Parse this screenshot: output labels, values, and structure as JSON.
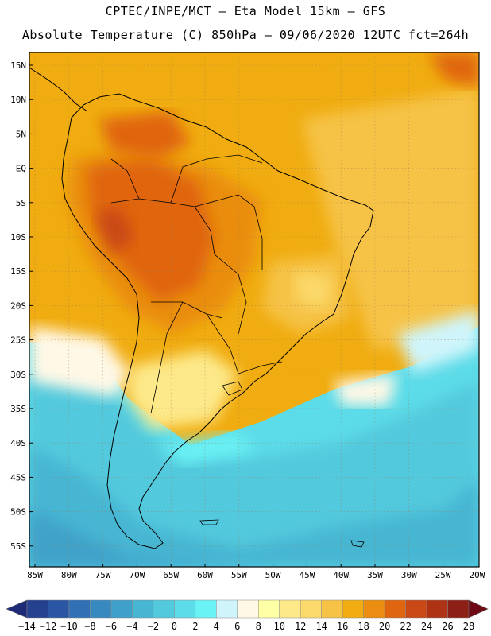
{
  "title_line1": "CPTEC/INPE/MCT –  Eta Model 15km – GFS",
  "title_line2": "Absolute Temperature (C) 850hPa – 09/06/2020 12UTC fct=264h",
  "map": {
    "lat_labels": [
      "15N",
      "10N",
      "5N",
      "EQ",
      "5S",
      "10S",
      "15S",
      "20S",
      "25S",
      "30S",
      "35S",
      "40S",
      "45S",
      "50S",
      "55S"
    ],
    "lon_labels": [
      "85W",
      "80W",
      "75W",
      "70W",
      "65W",
      "60W",
      "55W",
      "50W",
      "45W",
      "40W",
      "35W",
      "30W",
      "25W",
      "20W"
    ]
  },
  "colorbar": {
    "labels": [
      "-14",
      "-12",
      "-10",
      "-8",
      "-6",
      "-4",
      "-2",
      "0",
      "2",
      "4",
      "6",
      "8",
      "10",
      "12",
      "14",
      "16",
      "18",
      "20",
      "22",
      "24",
      "26",
      "28"
    ],
    "colors": [
      "#24408f",
      "#2b56a3",
      "#3170b5",
      "#3889c0",
      "#3fa1c9",
      "#47b6d3",
      "#52c9dd",
      "#5cdbe8",
      "#6af3f5",
      "#cff5fb",
      "#fff8e6",
      "#ffffa6",
      "#fde98a",
      "#fbd96a",
      "#f6c346",
      "#f0ac10",
      "#ea8d11",
      "#e06510",
      "#c94815",
      "#ad3314",
      "#8c1f16"
    ],
    "left_arrow_color": "#1e2a78",
    "right_arrow_color": "#6e0a16"
  }
}
